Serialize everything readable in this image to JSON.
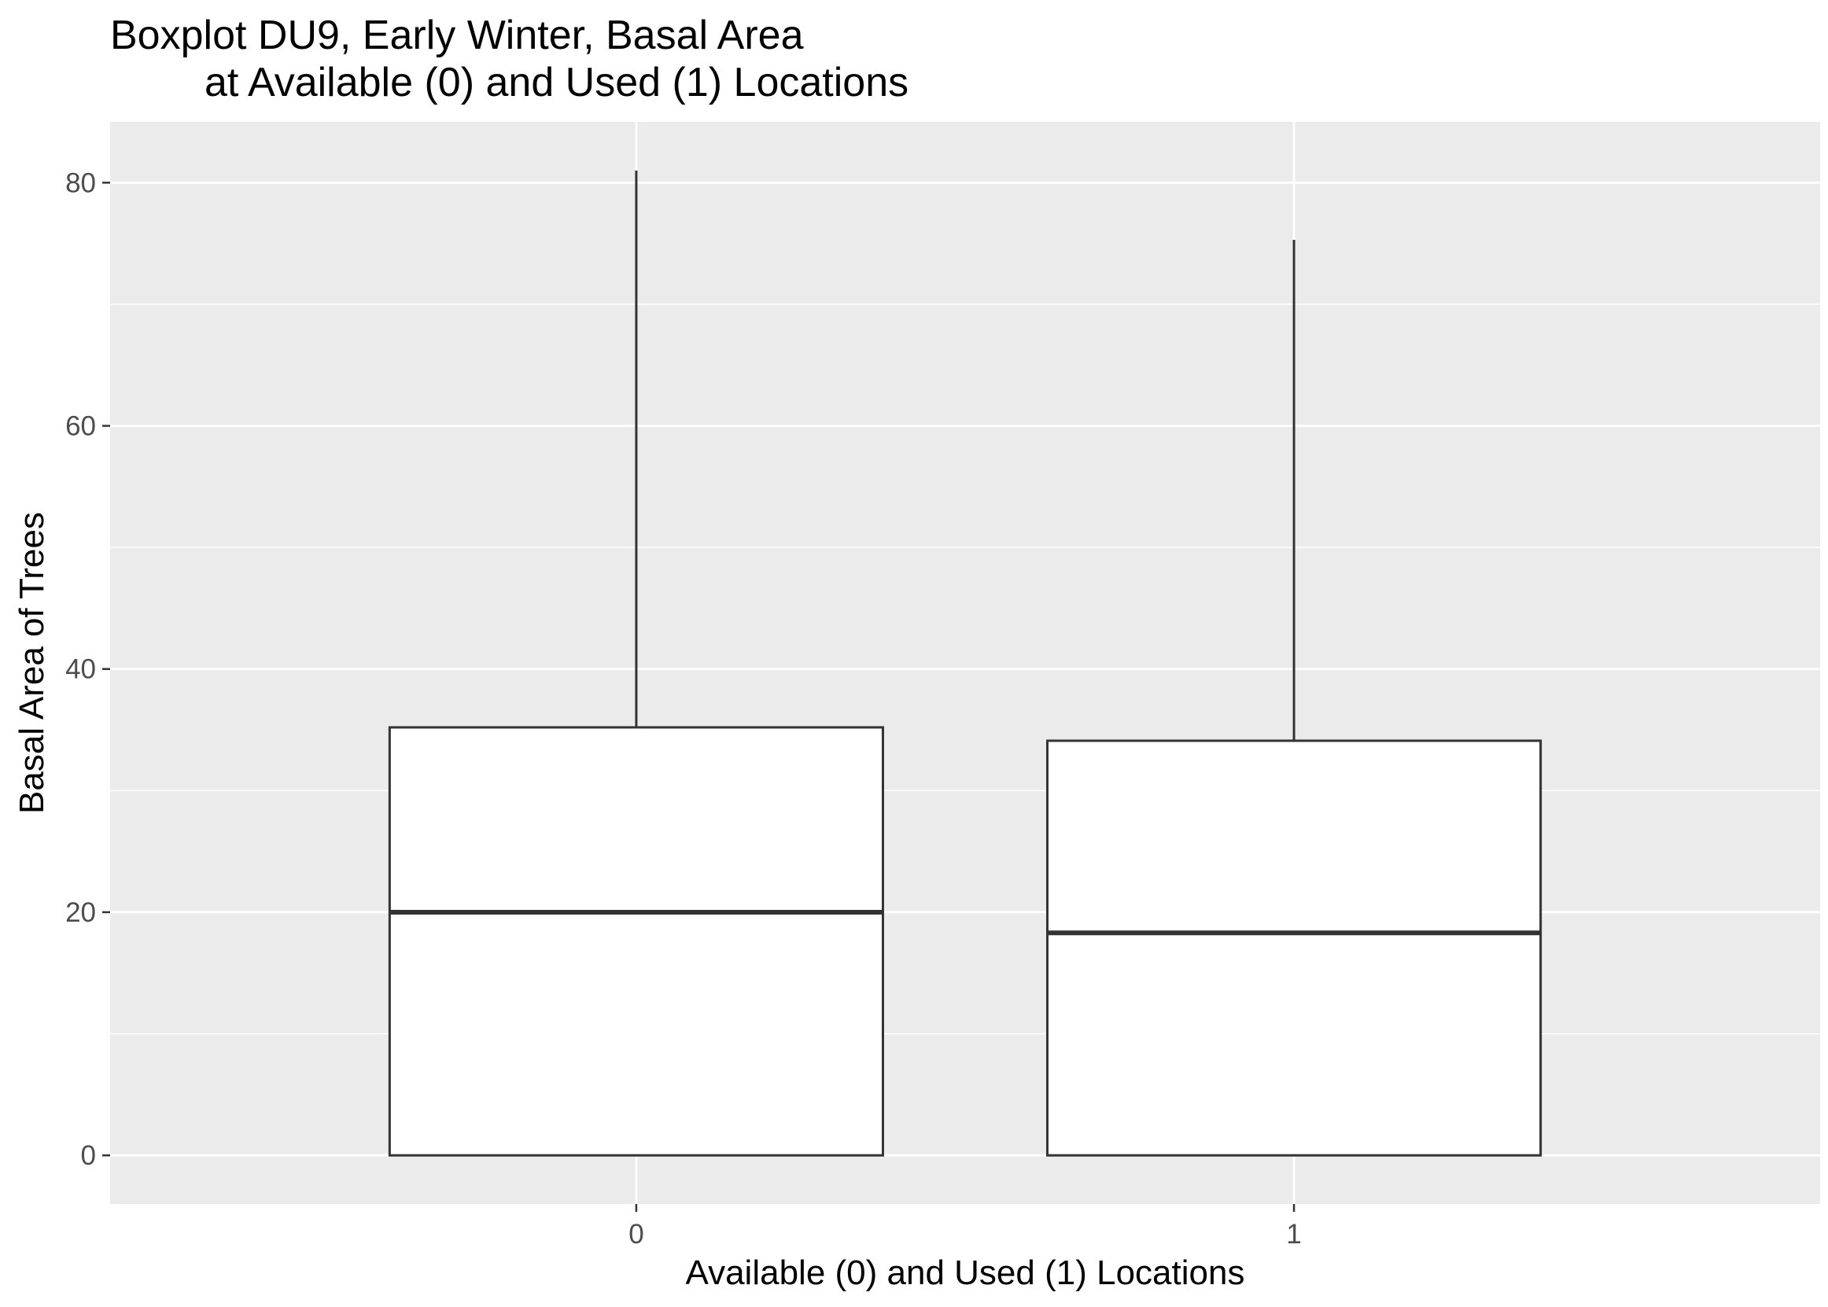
{
  "chart_data": {
    "type": "boxplot",
    "title": "Boxplot DU9, Early Winter, Basal Area",
    "subtitle": "at Available (0) and Used (1) Locations",
    "xlabel": "Available (0) and Used (1) Locations",
    "ylabel": "Basal Area of Trees",
    "categories": [
      "0",
      "1"
    ],
    "boxes": [
      {
        "category": "0",
        "whisker_low": 0,
        "q1": 0,
        "median": 20,
        "q3": 35.2,
        "whisker_high": 81
      },
      {
        "category": "1",
        "whisker_low": 0,
        "q1": 0,
        "median": 18.3,
        "q3": 34.1,
        "whisker_high": 75.3
      }
    ],
    "ylim": [
      -4,
      85
    ],
    "y_ticks": [
      0,
      20,
      40,
      60,
      80
    ],
    "y_tick_labels": [
      "0",
      "20",
      "40",
      "60",
      "80"
    ],
    "grid": true,
    "colors": {
      "panel_background": "#ebebeb",
      "grid_major": "#ffffff",
      "grid_minor": "#ffffff",
      "box_fill": "#ffffff",
      "box_stroke": "#333333",
      "tick_label": "#4d4d4d",
      "tick_mark": "#333333"
    }
  }
}
